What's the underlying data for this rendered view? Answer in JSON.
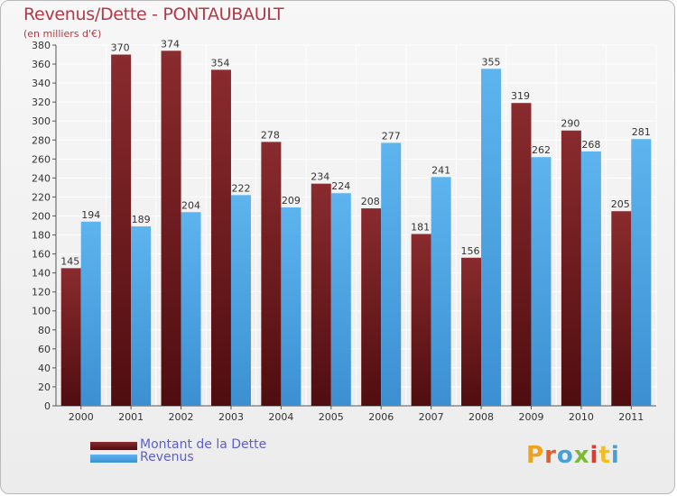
{
  "chart_data": {
    "type": "bar",
    "title": "Revenus/Dette - PONTAUBAULT",
    "subtitle": "(en milliers d'€)",
    "categories": [
      "2000",
      "2001",
      "2002",
      "2003",
      "2004",
      "2005",
      "2006",
      "2007",
      "2008",
      "2009",
      "2010",
      "2011"
    ],
    "series": [
      {
        "name": "Montant de la Dette",
        "values": [
          145,
          370,
          374,
          354,
          278,
          234,
          208,
          181,
          156,
          319,
          290,
          205
        ],
        "color": "#7a1f22"
      },
      {
        "name": "Revenus",
        "values": [
          194,
          189,
          204,
          222,
          209,
          224,
          277,
          241,
          355,
          262,
          268,
          281
        ],
        "color": "#4fa6e6"
      }
    ],
    "ylim": [
      0,
      380
    ],
    "ytick_step": 20,
    "grid": true,
    "legend_position": "bottom-left"
  },
  "logo": {
    "text": "Proxiti",
    "colors": [
      "#f0a21a",
      "#e0602a",
      "#4a9fd6",
      "#7cb935",
      "#e03a2f",
      "#f0c020",
      "#4a9fd6"
    ]
  }
}
